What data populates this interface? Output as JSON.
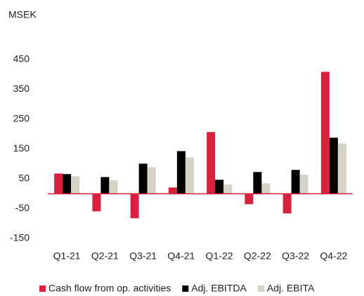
{
  "chart_data": {
    "type": "bar",
    "y_label": "MSEK",
    "categories": [
      "Q1-21",
      "Q2-21",
      "Q3-21",
      "Q4-21",
      "Q1-22",
      "Q2-22",
      "Q3-22",
      "Q4-22"
    ],
    "series": [
      {
        "name": "Cash flow from op. activities",
        "color": "#d7213d",
        "values": [
          68,
          -59,
          -82,
          21,
          207,
          -35,
          -66,
          409
        ]
      },
      {
        "name": "Adj. EBITDA",
        "color": "#000000",
        "values": [
          66,
          56,
          101,
          143,
          47,
          73,
          80,
          188
        ]
      },
      {
        "name": "Adj. EBITA",
        "color": "#d6d2c4",
        "values": [
          59,
          45,
          89,
          122,
          31,
          35,
          64,
          169
        ]
      }
    ],
    "ylim": [
      -150,
      450
    ],
    "yticks": [
      -150,
      -50,
      50,
      150,
      250,
      350,
      450
    ],
    "grid": false,
    "legend": "bottom"
  }
}
